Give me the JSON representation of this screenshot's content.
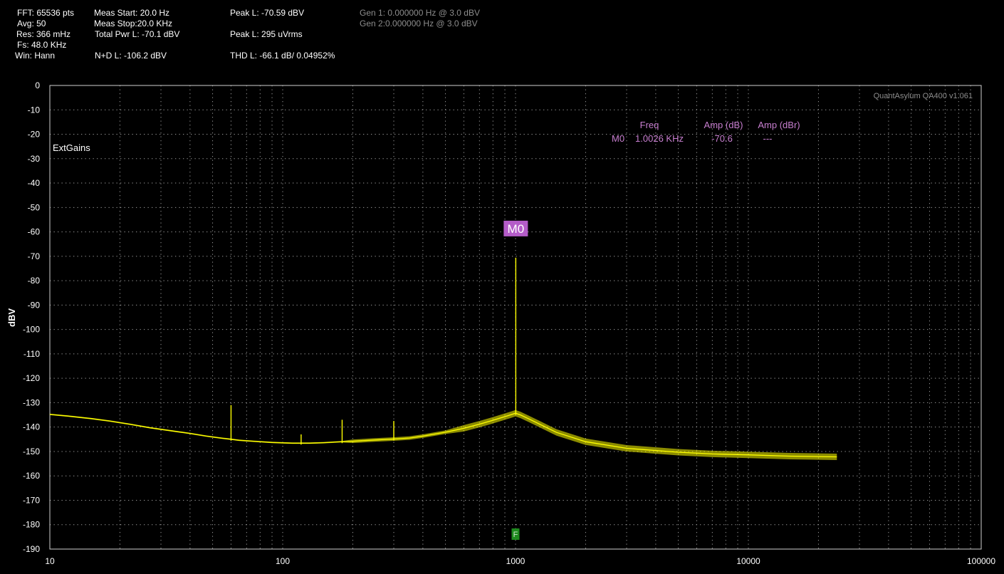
{
  "header": {
    "col1": [
      "FFT: 65536 pts",
      "Avg: 50",
      "Res: 366 mHz",
      "Fs: 48.0 KHz",
      "Win: Hann"
    ],
    "col2": [
      "Meas Start: 20.0 Hz",
      "Meas Stop:20.0 KHz",
      "Total Pwr L: -70.1 dBV",
      "",
      "N+D L: -106.2 dBV"
    ],
    "col3": [
      "Peak L: -70.59 dBV",
      "",
      "Peak L: 295 uVrms",
      "",
      "THD L: -66.1 dB/ 0.04952%"
    ],
    "gen1": "Gen 1: 0.000000 Hz @ 3.0  dBV",
    "gen2": "Gen 2:0.000000 Hz @ 3.0  dBV"
  },
  "chart_data": {
    "type": "line",
    "xscale": "log",
    "xlim": [
      10,
      100000
    ],
    "ylim": [
      -190,
      0
    ],
    "xticks": [
      "10",
      "100",
      "1000",
      "10000",
      "100000"
    ],
    "yticks": [
      "0",
      "-10",
      "-20",
      "-30",
      "-40",
      "-50",
      "-60",
      "-70",
      "-80",
      "-90",
      "-100",
      "-110",
      "-120",
      "-130",
      "-140",
      "-150",
      "-160",
      "-170",
      "-180",
      "-190"
    ],
    "ylabel": "dBV",
    "xlabel": "",
    "grid": true,
    "watermark": "QuantAsylum QA400 v1.061",
    "annotation": "ExtGains",
    "marker_table": {
      "headers": [
        "Freq",
        "Amp (dB)",
        "Amp (dBr)"
      ],
      "row": {
        "name": "M0",
        "freq": "1.0026 KHz",
        "amp_db": "-70.6",
        "amp_dbr": "---"
      }
    },
    "marker": {
      "label": "M0",
      "freq_hz": 1002.6,
      "amp_db": -70.6
    },
    "fundamental_flag": {
      "label": "F",
      "freq_hz": 1000
    },
    "series": [
      {
        "color": "#ffff00",
        "x": [
          10,
          12,
          15,
          18,
          22,
          27,
          33,
          40,
          47,
          55,
          60,
          65,
          75,
          90,
          110,
          120,
          130,
          150,
          170,
          180,
          200,
          250,
          300,
          350,
          400,
          500,
          600,
          700,
          800,
          900,
          950,
          1000,
          1050,
          1150,
          1300,
          1500,
          2000,
          3000,
          5000,
          7000,
          10000,
          15000,
          20000,
          24000
        ],
        "y": [
          -134.8,
          -135.5,
          -136.5,
          -137.5,
          -138.8,
          -140.3,
          -141.5,
          -142.6,
          -143.7,
          -144.6,
          -145,
          -145.4,
          -145.8,
          -146.3,
          -146.6,
          -146.6,
          -146.6,
          -146.4,
          -146.1,
          -146,
          -145.8,
          -145.3,
          -144.9,
          -144.5,
          -143.7,
          -142.1,
          -140.5,
          -138.8,
          -137.2,
          -135.7,
          -135,
          -134.3,
          -135,
          -136.8,
          -139.3,
          -142.2,
          -146,
          -148.7,
          -150.3,
          -151,
          -151.4,
          -151.9,
          -152.1,
          -152.2
        ],
        "spikes": [
          {
            "x": 60,
            "y": -131
          },
          {
            "x": 120,
            "y": -143
          },
          {
            "x": 180,
            "y": -137
          },
          {
            "x": 300,
            "y": -137.5
          },
          {
            "x": 1002.6,
            "y": -70.6
          }
        ]
      }
    ]
  }
}
